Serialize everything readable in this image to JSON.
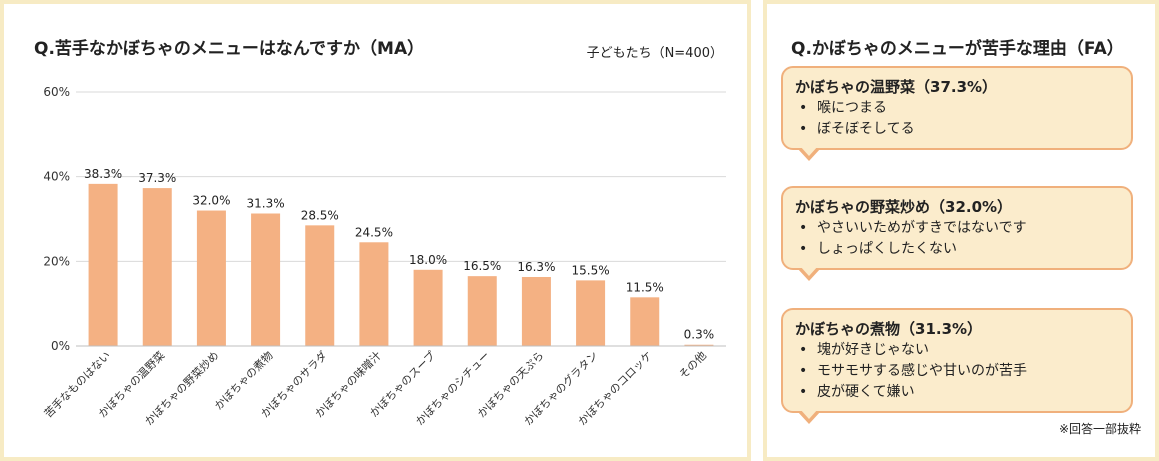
{
  "left_panel": {
    "title": "Q.苦手なかぼちゃのメニューはなんですか（MA）",
    "subtitle": "子どもたち（N=400）"
  },
  "chart_data": {
    "type": "bar",
    "categories": [
      "苦手なものはない",
      "かぼちゃの温野菜",
      "かぼちゃの野菜炒め",
      "かぼちゃの煮物",
      "かぼちゃのサラダ",
      "かぼちゃの味噌汁",
      "かぼちゃのスープ",
      "かぼちゃのシチュー",
      "かぼちゃの天ぷら",
      "かぼちゃのグラタン",
      "かぼちゃのコロッケ",
      "その他"
    ],
    "values": [
      38.3,
      37.3,
      32.0,
      31.3,
      28.5,
      24.5,
      18.0,
      16.5,
      16.3,
      15.5,
      11.5,
      0.3
    ],
    "value_labels": [
      "38.3%",
      "37.3%",
      "32.0%",
      "31.3%",
      "28.5%",
      "24.5%",
      "18.0%",
      "16.5%",
      "16.3%",
      "15.5%",
      "11.5%",
      "0.3%"
    ],
    "title": "Q.苦手なかぼちゃのメニューはなんですか（MA）",
    "ylim": [
      0,
      60
    ],
    "yticks": [
      0,
      20,
      40,
      60
    ],
    "ytick_labels": [
      "0%",
      "20%",
      "40%",
      "60%"
    ],
    "grid": true,
    "bar_color": "#f4b183",
    "grid_color": "#d9d9d9"
  },
  "right_panel": {
    "title": "Q.かぼちゃのメニューが苦手な理由（FA）",
    "bubbles": [
      {
        "title": "かぼちゃの温野菜（37.3%）",
        "items": [
          "喉につまる",
          "ぼそぼそしてる"
        ]
      },
      {
        "title": "かぼちゃの野菜炒め（32.0%）",
        "items": [
          "やさいいためがすきではないです",
          "しょっぱくしたくない"
        ]
      },
      {
        "title": "かぼちゃの煮物（31.3%）",
        "items": [
          "塊が好きじゃない",
          "モサモサする感じや甘いのが苦手",
          "皮が硬くて嫌い"
        ]
      }
    ],
    "footnote": "※回答一部抜粋"
  },
  "colors": {
    "panel_border": "#f7ebc4",
    "bubble_fill": "#fbeccc",
    "bubble_border": "#f0b07c"
  }
}
